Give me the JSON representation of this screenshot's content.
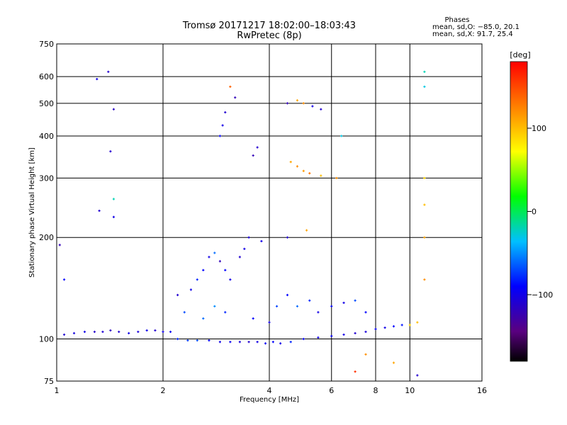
{
  "chart_data": {
    "type": "scatter",
    "title": "Tromsø 20171217 18:02:00–18:03:43",
    "subtitle": "RwPretec (8p)",
    "xlabel": "Frequency [MHz]",
    "ylabel": "Stationary phase Virtual Height [km]",
    "x_scale": "log",
    "y_scale": "log",
    "xlim": [
      1,
      16
    ],
    "ylim": [
      75,
      750
    ],
    "x_ticks": [
      "1",
      "2",
      "4",
      "6",
      "8",
      "10",
      "16"
    ],
    "y_ticks": [
      "75",
      "100",
      "200",
      "300",
      "400",
      "500",
      "600",
      "750"
    ],
    "grid": true,
    "stats": {
      "label": "Phases",
      "line_o": "mean, sd,O: −85.0, 20.1",
      "line_x": "mean, sd,X:  91.7, 25.4"
    },
    "colorbar": {
      "label": "[deg]",
      "range": [
        -180,
        180
      ],
      "ticks": [
        "100",
        "0",
        "−100"
      ],
      "colormap": "rainbow"
    },
    "series": [
      {
        "values_note": "phase in degrees",
        "points": [
          {
            "x": 1.05,
            "y": 103,
            "phase": -110
          },
          {
            "x": 1.12,
            "y": 104,
            "phase": -105
          },
          {
            "x": 1.2,
            "y": 105,
            "phase": -100
          },
          {
            "x": 1.28,
            "y": 105,
            "phase": -112
          },
          {
            "x": 1.35,
            "y": 105,
            "phase": -108
          },
          {
            "x": 1.42,
            "y": 106,
            "phase": -115
          },
          {
            "x": 1.5,
            "y": 105,
            "phase": -110
          },
          {
            "x": 1.6,
            "y": 104,
            "phase": -100
          },
          {
            "x": 1.7,
            "y": 105,
            "phase": -105
          },
          {
            "x": 1.8,
            "y": 106,
            "phase": -98
          },
          {
            "x": 1.9,
            "y": 106,
            "phase": -110
          },
          {
            "x": 2.0,
            "y": 105,
            "phase": -100
          },
          {
            "x": 2.1,
            "y": 105,
            "phase": -95
          },
          {
            "x": 2.2,
            "y": 100,
            "phase": -80
          },
          {
            "x": 2.35,
            "y": 99,
            "phase": -75
          },
          {
            "x": 2.5,
            "y": 99,
            "phase": -70
          },
          {
            "x": 2.7,
            "y": 99,
            "phase": -90
          },
          {
            "x": 2.9,
            "y": 98,
            "phase": -100
          },
          {
            "x": 3.1,
            "y": 98,
            "phase": -95
          },
          {
            "x": 3.3,
            "y": 98,
            "phase": -105
          },
          {
            "x": 3.5,
            "y": 98,
            "phase": -110
          },
          {
            "x": 3.7,
            "y": 98,
            "phase": -100
          },
          {
            "x": 3.9,
            "y": 97,
            "phase": -95
          },
          {
            "x": 4.1,
            "y": 98,
            "phase": -90
          },
          {
            "x": 4.3,
            "y": 97,
            "phase": -100
          },
          {
            "x": 4.6,
            "y": 98,
            "phase": -80
          },
          {
            "x": 5.0,
            "y": 100,
            "phase": -90
          },
          {
            "x": 5.5,
            "y": 101,
            "phase": -100
          },
          {
            "x": 6.0,
            "y": 102,
            "phase": -95
          },
          {
            "x": 6.5,
            "y": 103,
            "phase": -100
          },
          {
            "x": 7.0,
            "y": 104,
            "phase": -110
          },
          {
            "x": 7.5,
            "y": 105,
            "phase": -105
          },
          {
            "x": 8.0,
            "y": 107,
            "phase": -95
          },
          {
            "x": 8.5,
            "y": 108,
            "phase": -100
          },
          {
            "x": 9.0,
            "y": 109,
            "phase": -90
          },
          {
            "x": 9.5,
            "y": 110,
            "phase": -85
          },
          {
            "x": 10.0,
            "y": 110,
            "phase": 90
          },
          {
            "x": 10.5,
            "y": 112,
            "phase": 100
          },
          {
            "x": 2.2,
            "y": 135,
            "phase": -110
          },
          {
            "x": 2.4,
            "y": 140,
            "phase": -100
          },
          {
            "x": 2.5,
            "y": 150,
            "phase": -80
          },
          {
            "x": 2.6,
            "y": 160,
            "phase": -90
          },
          {
            "x": 2.7,
            "y": 175,
            "phase": -100
          },
          {
            "x": 2.8,
            "y": 180,
            "phase": -60
          },
          {
            "x": 2.9,
            "y": 170,
            "phase": -120
          },
          {
            "x": 3.0,
            "y": 160,
            "phase": -90
          },
          {
            "x": 3.1,
            "y": 150,
            "phase": -100
          },
          {
            "x": 3.3,
            "y": 175,
            "phase": -110
          },
          {
            "x": 3.4,
            "y": 185,
            "phase": -100
          },
          {
            "x": 3.5,
            "y": 200,
            "phase": -105
          },
          {
            "x": 2.3,
            "y": 120,
            "phase": -70
          },
          {
            "x": 2.6,
            "y": 115,
            "phase": -60
          },
          {
            "x": 2.8,
            "y": 125,
            "phase": -50
          },
          {
            "x": 3.0,
            "y": 120,
            "phase": -80
          },
          {
            "x": 3.6,
            "y": 115,
            "phase": -90
          },
          {
            "x": 4.0,
            "y": 112,
            "phase": -100
          },
          {
            "x": 4.2,
            "y": 125,
            "phase": -70
          },
          {
            "x": 4.5,
            "y": 135,
            "phase": -90
          },
          {
            "x": 4.8,
            "y": 125,
            "phase": -60
          },
          {
            "x": 5.2,
            "y": 130,
            "phase": -80
          },
          {
            "x": 5.5,
            "y": 120,
            "phase": -100
          },
          {
            "x": 6.0,
            "y": 125,
            "phase": -90
          },
          {
            "x": 6.5,
            "y": 128,
            "phase": -100
          },
          {
            "x": 7.0,
            "y": 130,
            "phase": -70
          },
          {
            "x": 7.5,
            "y": 120,
            "phase": -90
          },
          {
            "x": 2.9,
            "y": 400,
            "phase": -90
          },
          {
            "x": 2.95,
            "y": 430,
            "phase": -100
          },
          {
            "x": 3.0,
            "y": 470,
            "phase": -110
          },
          {
            "x": 3.6,
            "y": 350,
            "phase": -120
          },
          {
            "x": 3.7,
            "y": 370,
            "phase": -110
          },
          {
            "x": 4.5,
            "y": 500,
            "phase": -120
          },
          {
            "x": 4.8,
            "y": 510,
            "phase": 110
          },
          {
            "x": 5.0,
            "y": 500,
            "phase": 120
          },
          {
            "x": 5.3,
            "y": 490,
            "phase": -100
          },
          {
            "x": 5.6,
            "y": 480,
            "phase": -110
          },
          {
            "x": 4.6,
            "y": 335,
            "phase": 110
          },
          {
            "x": 4.8,
            "y": 325,
            "phase": 120
          },
          {
            "x": 5.0,
            "y": 315,
            "phase": 115
          },
          {
            "x": 5.2,
            "y": 310,
            "phase": 130
          },
          {
            "x": 5.6,
            "y": 305,
            "phase": 100
          },
          {
            "x": 5.1,
            "y": 210,
            "phase": 110
          },
          {
            "x": 1.4,
            "y": 620,
            "phase": -110
          },
          {
            "x": 1.3,
            "y": 590,
            "phase": -100
          },
          {
            "x": 1.45,
            "y": 480,
            "phase": -115
          },
          {
            "x": 1.42,
            "y": 360,
            "phase": -110
          },
          {
            "x": 1.45,
            "y": 260,
            "phase": -20
          },
          {
            "x": 1.45,
            "y": 230,
            "phase": -100
          },
          {
            "x": 1.32,
            "y": 240,
            "phase": -110
          },
          {
            "x": 1.02,
            "y": 190,
            "phase": -120
          },
          {
            "x": 1.05,
            "y": 150,
            "phase": -90
          },
          {
            "x": 11.0,
            "y": 620,
            "phase": -20
          },
          {
            "x": 11.0,
            "y": 560,
            "phase": -30
          },
          {
            "x": 11.0,
            "y": 300,
            "phase": 90
          },
          {
            "x": 11.0,
            "y": 250,
            "phase": 100
          },
          {
            "x": 11.0,
            "y": 200,
            "phase": 110
          },
          {
            "x": 11.0,
            "y": 150,
            "phase": 120
          },
          {
            "x": 3.1,
            "y": 560,
            "phase": 140
          },
          {
            "x": 3.2,
            "y": 520,
            "phase": -120
          },
          {
            "x": 3.8,
            "y": 195,
            "phase": -100
          },
          {
            "x": 4.5,
            "y": 200,
            "phase": -110
          },
          {
            "x": 6.4,
            "y": 400,
            "phase": -30
          },
          {
            "x": 6.2,
            "y": 300,
            "phase": 120
          },
          {
            "x": 7.0,
            "y": 80,
            "phase": 160
          },
          {
            "x": 7.5,
            "y": 90,
            "phase": 120
          },
          {
            "x": 9.0,
            "y": 85,
            "phase": 110
          },
          {
            "x": 10.5,
            "y": 78,
            "phase": -110
          }
        ]
      }
    ]
  }
}
